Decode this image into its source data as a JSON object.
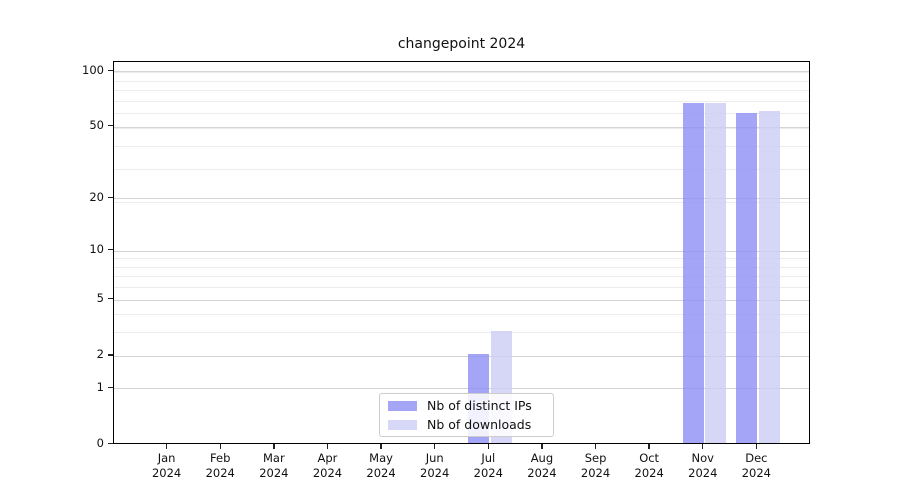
{
  "title": "changepoint 2024",
  "colors": {
    "ips": "#a5a5f5",
    "downloads": "#d7d7f8",
    "grid_major": "#d4d4d4",
    "grid_minor": "#ececec",
    "spine": "#000000"
  },
  "y_axis": {
    "tick_labels": [
      "100",
      "50",
      "20",
      "10",
      "5",
      "2",
      "1",
      "0"
    ],
    "tick_values": [
      100,
      50,
      20,
      10,
      5,
      2,
      1,
      0
    ]
  },
  "x_axis": {
    "months": [
      "Jan",
      "Feb",
      "Mar",
      "Apr",
      "May",
      "Jun",
      "Jul",
      "Aug",
      "Sep",
      "Oct",
      "Nov",
      "Dec"
    ],
    "year": "2024"
  },
  "legend": {
    "items": [
      {
        "label": "Nb of distinct IPs",
        "color_key": "ips"
      },
      {
        "label": "Nb of downloads",
        "color_key": "downloads"
      }
    ]
  },
  "chart_data": {
    "type": "bar",
    "title": "changepoint 2024",
    "categories": [
      "Jan 2024",
      "Feb 2024",
      "Mar 2024",
      "Apr 2024",
      "May 2024",
      "Jun 2024",
      "Jul 2024",
      "Aug 2024",
      "Sep 2024",
      "Oct 2024",
      "Nov 2024",
      "Dec 2024"
    ],
    "series": [
      {
        "name": "Nb of distinct IPs",
        "values": [
          0,
          0,
          0,
          0,
          0,
          0,
          2,
          0,
          0,
          0,
          66,
          58
        ]
      },
      {
        "name": "Nb of downloads",
        "values": [
          0,
          0,
          0,
          0,
          0,
          0,
          3,
          0,
          0,
          0,
          66,
          60
        ]
      }
    ],
    "yscale": "log10(1+v)",
    "y_ticks": [
      100,
      50,
      20,
      10,
      5,
      2,
      1,
      0
    ],
    "minor_grid_at_1plusv": [
      4,
      5,
      7,
      8,
      9,
      10,
      20,
      30,
      40,
      50,
      60,
      70,
      80,
      90,
      100
    ],
    "ylim": [
      0,
      112
    ],
    "grid": true,
    "legend_position": "lower center"
  }
}
